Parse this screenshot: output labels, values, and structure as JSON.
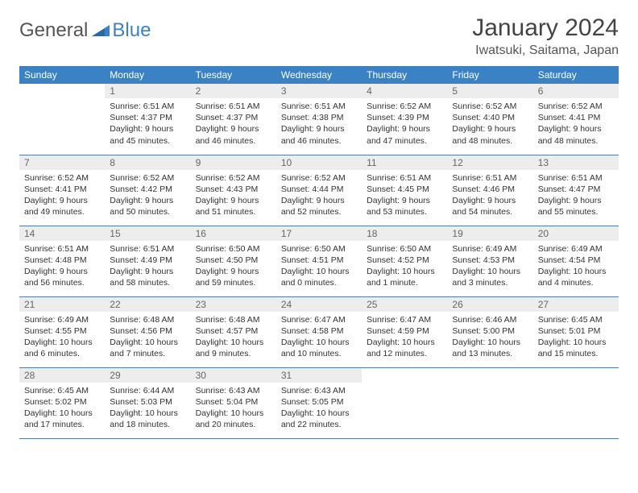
{
  "brand": {
    "part1": "General",
    "part2": "Blue"
  },
  "title": "January 2024",
  "location": "Iwatsuki, Saitama, Japan",
  "colors": {
    "header_bg": "#3b82c4",
    "daynum_bg": "#ededed",
    "row_border": "#3b82c4"
  },
  "weekdays": [
    "Sunday",
    "Monday",
    "Tuesday",
    "Wednesday",
    "Thursday",
    "Friday",
    "Saturday"
  ],
  "first_weekday_index": 1,
  "days": [
    {
      "n": 1,
      "sunrise": "6:51 AM",
      "sunset": "4:37 PM",
      "daylight": "9 hours and 45 minutes."
    },
    {
      "n": 2,
      "sunrise": "6:51 AM",
      "sunset": "4:37 PM",
      "daylight": "9 hours and 46 minutes."
    },
    {
      "n": 3,
      "sunrise": "6:51 AM",
      "sunset": "4:38 PM",
      "daylight": "9 hours and 46 minutes."
    },
    {
      "n": 4,
      "sunrise": "6:52 AM",
      "sunset": "4:39 PM",
      "daylight": "9 hours and 47 minutes."
    },
    {
      "n": 5,
      "sunrise": "6:52 AM",
      "sunset": "4:40 PM",
      "daylight": "9 hours and 48 minutes."
    },
    {
      "n": 6,
      "sunrise": "6:52 AM",
      "sunset": "4:41 PM",
      "daylight": "9 hours and 48 minutes."
    },
    {
      "n": 7,
      "sunrise": "6:52 AM",
      "sunset": "4:41 PM",
      "daylight": "9 hours and 49 minutes."
    },
    {
      "n": 8,
      "sunrise": "6:52 AM",
      "sunset": "4:42 PM",
      "daylight": "9 hours and 50 minutes."
    },
    {
      "n": 9,
      "sunrise": "6:52 AM",
      "sunset": "4:43 PM",
      "daylight": "9 hours and 51 minutes."
    },
    {
      "n": 10,
      "sunrise": "6:52 AM",
      "sunset": "4:44 PM",
      "daylight": "9 hours and 52 minutes."
    },
    {
      "n": 11,
      "sunrise": "6:51 AM",
      "sunset": "4:45 PM",
      "daylight": "9 hours and 53 minutes."
    },
    {
      "n": 12,
      "sunrise": "6:51 AM",
      "sunset": "4:46 PM",
      "daylight": "9 hours and 54 minutes."
    },
    {
      "n": 13,
      "sunrise": "6:51 AM",
      "sunset": "4:47 PM",
      "daylight": "9 hours and 55 minutes."
    },
    {
      "n": 14,
      "sunrise": "6:51 AM",
      "sunset": "4:48 PM",
      "daylight": "9 hours and 56 minutes."
    },
    {
      "n": 15,
      "sunrise": "6:51 AM",
      "sunset": "4:49 PM",
      "daylight": "9 hours and 58 minutes."
    },
    {
      "n": 16,
      "sunrise": "6:50 AM",
      "sunset": "4:50 PM",
      "daylight": "9 hours and 59 minutes."
    },
    {
      "n": 17,
      "sunrise": "6:50 AM",
      "sunset": "4:51 PM",
      "daylight": "10 hours and 0 minutes."
    },
    {
      "n": 18,
      "sunrise": "6:50 AM",
      "sunset": "4:52 PM",
      "daylight": "10 hours and 1 minute."
    },
    {
      "n": 19,
      "sunrise": "6:49 AM",
      "sunset": "4:53 PM",
      "daylight": "10 hours and 3 minutes."
    },
    {
      "n": 20,
      "sunrise": "6:49 AM",
      "sunset": "4:54 PM",
      "daylight": "10 hours and 4 minutes."
    },
    {
      "n": 21,
      "sunrise": "6:49 AM",
      "sunset": "4:55 PM",
      "daylight": "10 hours and 6 minutes."
    },
    {
      "n": 22,
      "sunrise": "6:48 AM",
      "sunset": "4:56 PM",
      "daylight": "10 hours and 7 minutes."
    },
    {
      "n": 23,
      "sunrise": "6:48 AM",
      "sunset": "4:57 PM",
      "daylight": "10 hours and 9 minutes."
    },
    {
      "n": 24,
      "sunrise": "6:47 AM",
      "sunset": "4:58 PM",
      "daylight": "10 hours and 10 minutes."
    },
    {
      "n": 25,
      "sunrise": "6:47 AM",
      "sunset": "4:59 PM",
      "daylight": "10 hours and 12 minutes."
    },
    {
      "n": 26,
      "sunrise": "6:46 AM",
      "sunset": "5:00 PM",
      "daylight": "10 hours and 13 minutes."
    },
    {
      "n": 27,
      "sunrise": "6:45 AM",
      "sunset": "5:01 PM",
      "daylight": "10 hours and 15 minutes."
    },
    {
      "n": 28,
      "sunrise": "6:45 AM",
      "sunset": "5:02 PM",
      "daylight": "10 hours and 17 minutes."
    },
    {
      "n": 29,
      "sunrise": "6:44 AM",
      "sunset": "5:03 PM",
      "daylight": "10 hours and 18 minutes."
    },
    {
      "n": 30,
      "sunrise": "6:43 AM",
      "sunset": "5:04 PM",
      "daylight": "10 hours and 20 minutes."
    },
    {
      "n": 31,
      "sunrise": "6:43 AM",
      "sunset": "5:05 PM",
      "daylight": "10 hours and 22 minutes."
    }
  ],
  "labels": {
    "sunrise": "Sunrise:",
    "sunset": "Sunset:",
    "daylight": "Daylight:"
  }
}
